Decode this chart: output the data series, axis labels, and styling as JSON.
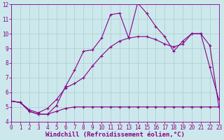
{
  "background_color": "#cce8ec",
  "grid_color": "#aacccc",
  "line_color": "#880088",
  "xlabel": "Windchill (Refroidissement éolien,°C)",
  "xlim": [
    0,
    23
  ],
  "ylim": [
    4,
    12
  ],
  "yticks": [
    4,
    5,
    6,
    7,
    8,
    9,
    10,
    11,
    12
  ],
  "xticks": [
    0,
    1,
    2,
    3,
    4,
    5,
    6,
    7,
    8,
    9,
    10,
    11,
    12,
    13,
    14,
    15,
    16,
    17,
    18,
    19,
    20,
    21,
    22,
    23
  ],
  "line1_x": [
    0,
    1,
    2,
    3,
    4,
    5,
    6,
    7,
    8,
    9,
    10,
    11,
    12,
    13,
    14,
    15,
    16,
    17,
    18,
    19,
    20,
    21,
    22,
    23
  ],
  "line1_y": [
    5.4,
    5.3,
    4.7,
    4.5,
    4.5,
    5.1,
    6.4,
    7.5,
    8.8,
    8.9,
    9.7,
    11.3,
    11.4,
    9.7,
    12.1,
    11.4,
    10.5,
    9.8,
    8.8,
    9.5,
    10.0,
    10.0,
    7.7,
    5.5
  ],
  "line2_x": [
    0,
    1,
    2,
    3,
    4,
    5,
    6,
    7,
    8,
    9,
    10,
    11,
    12,
    13,
    14,
    15,
    16,
    17,
    18,
    19,
    20,
    21,
    22,
    23
  ],
  "line2_y": [
    5.4,
    5.3,
    4.8,
    4.6,
    4.9,
    5.5,
    6.3,
    6.6,
    7.0,
    7.8,
    8.5,
    9.1,
    9.5,
    9.7,
    9.8,
    9.8,
    9.6,
    9.3,
    9.1,
    9.3,
    10.0,
    10.0,
    9.2,
    5.0
  ],
  "line3_x": [
    0,
    1,
    2,
    3,
    4,
    5,
    6,
    7,
    8,
    9,
    10,
    11,
    12,
    13,
    14,
    15,
    16,
    17,
    18,
    19,
    20,
    21,
    22,
    23
  ],
  "line3_y": [
    5.4,
    5.3,
    4.7,
    4.5,
    4.5,
    4.7,
    4.9,
    5.0,
    5.0,
    5.0,
    5.0,
    5.0,
    5.0,
    5.0,
    5.0,
    5.0,
    5.0,
    5.0,
    5.0,
    5.0,
    5.0,
    5.0,
    5.0,
    5.0
  ],
  "tick_fontsize": 5.5,
  "label_fontsize": 6.5,
  "linewidth": 0.8,
  "markersize": 2.5
}
